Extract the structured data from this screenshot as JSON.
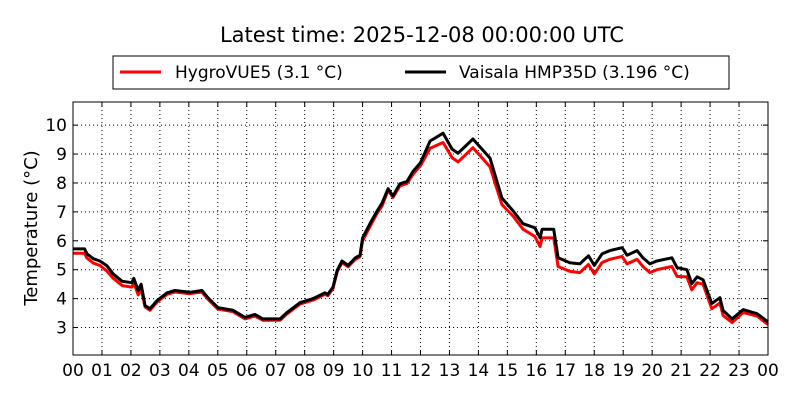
{
  "chart_data": {
    "type": "line",
    "title": "Latest time: 2025-12-08 00:00:00 UTC",
    "xlabel": "",
    "ylabel": "Temperature (°C)",
    "xlim": [
      0,
      24
    ],
    "ylim": [
      2.05,
      10.8
    ],
    "grid": true,
    "legend_position": "top-center",
    "xticks": [
      0,
      1,
      2,
      3,
      4,
      5,
      6,
      7,
      8,
      9,
      10,
      11,
      12,
      13,
      14,
      15,
      16,
      17,
      18,
      19,
      20,
      21,
      22,
      23,
      24
    ],
    "xtick_labels": [
      "00",
      "01",
      "02",
      "03",
      "04",
      "05",
      "06",
      "07",
      "08",
      "09",
      "10",
      "11",
      "12",
      "13",
      "14",
      "15",
      "16",
      "17",
      "18",
      "19",
      "20",
      "21",
      "22",
      "23",
      "00"
    ],
    "yticks": [
      3,
      4,
      5,
      6,
      7,
      8,
      9,
      10
    ],
    "ytick_labels": [
      "3",
      "4",
      "5",
      "6",
      "7",
      "8",
      "9",
      "10"
    ],
    "x": [
      0,
      0.4,
      0.48,
      0.7,
      0.93,
      1.17,
      1.38,
      1.7,
      2.03,
      2.1,
      2.25,
      2.35,
      2.49,
      2.66,
      2.9,
      3.25,
      3.52,
      4.04,
      4.45,
      4.66,
      5.0,
      5.52,
      5.94,
      6.28,
      6.56,
      7.15,
      7.39,
      7.84,
      8.29,
      8.7,
      8.8,
      8.98,
      9.12,
      9.29,
      9.5,
      9.74,
      9.91,
      10.0,
      10.26,
      10.5,
      10.67,
      10.88,
      11.05,
      11.29,
      11.53,
      11.74,
      12.0,
      12.33,
      12.78,
      13.09,
      13.3,
      13.81,
      14.4,
      14.81,
      15.2,
      15.54,
      15.95,
      16.13,
      16.2,
      16.6,
      16.75,
      17.16,
      17.5,
      17.8,
      18.0,
      18.27,
      18.54,
      18.96,
      19.13,
      19.48,
      19.68,
      19.92,
      20.16,
      20.68,
      20.86,
      21.2,
      21.37,
      21.55,
      21.76,
      22.06,
      22.34,
      22.45,
      22.76,
      23.14,
      23.62,
      24.0
    ],
    "series": [
      {
        "name": "HygroVUE5 (3.1 °C)",
        "color": "#ff0000",
        "values": [
          5.57,
          5.57,
          5.4,
          5.23,
          5.15,
          4.95,
          4.71,
          4.45,
          4.4,
          4.55,
          4.13,
          4.35,
          3.71,
          3.6,
          3.88,
          4.15,
          4.23,
          4.17,
          4.23,
          3.98,
          3.64,
          3.55,
          3.3,
          3.4,
          3.25,
          3.25,
          3.47,
          3.81,
          3.95,
          4.15,
          4.1,
          4.35,
          4.92,
          5.25,
          5.1,
          5.35,
          5.45,
          6.0,
          6.5,
          6.95,
          7.2,
          7.75,
          7.5,
          7.9,
          7.98,
          8.3,
          8.6,
          9.2,
          9.4,
          8.87,
          8.73,
          9.22,
          8.56,
          7.25,
          6.85,
          6.4,
          6.15,
          5.8,
          6.1,
          6.1,
          5.11,
          4.94,
          4.9,
          5.18,
          4.85,
          5.25,
          5.36,
          5.46,
          5.2,
          5.36,
          5.11,
          4.9,
          5.0,
          5.11,
          4.77,
          4.75,
          4.3,
          4.55,
          4.5,
          3.65,
          3.85,
          3.42,
          3.17,
          3.52,
          3.4,
          3.1
        ]
      },
      {
        "name": "Vaisala HMP35D (3.196 °C)",
        "color": "#000000",
        "values": [
          5.72,
          5.72,
          5.55,
          5.38,
          5.3,
          5.14,
          4.86,
          4.6,
          4.55,
          4.7,
          4.28,
          4.5,
          3.76,
          3.65,
          3.93,
          4.2,
          4.28,
          4.22,
          4.28,
          4.03,
          3.69,
          3.6,
          3.35,
          3.45,
          3.3,
          3.3,
          3.52,
          3.86,
          4.0,
          4.2,
          4.15,
          4.4,
          4.97,
          5.3,
          5.15,
          5.4,
          5.5,
          6.1,
          6.6,
          7.03,
          7.3,
          7.8,
          7.55,
          7.97,
          8.05,
          8.4,
          8.7,
          9.45,
          9.72,
          9.17,
          9.03,
          9.52,
          8.86,
          7.48,
          7.03,
          6.59,
          6.45,
          6.1,
          6.4,
          6.4,
          5.41,
          5.24,
          5.2,
          5.48,
          5.15,
          5.55,
          5.66,
          5.76,
          5.5,
          5.66,
          5.41,
          5.2,
          5.3,
          5.41,
          5.07,
          5.0,
          4.52,
          4.75,
          4.65,
          3.83,
          4.03,
          3.59,
          3.3,
          3.62,
          3.48,
          3.196
        ]
      }
    ]
  }
}
